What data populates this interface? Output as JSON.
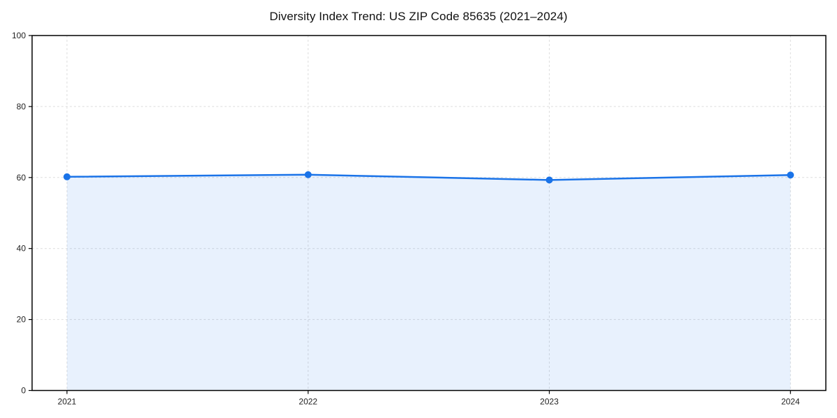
{
  "title": "Diversity Index Trend: US ZIP Code 85635 (2021–2024)",
  "chart_data": {
    "type": "line",
    "title": "Diversity Index Trend: US ZIP Code 85635 (2021–2024)",
    "categories": [
      "2021",
      "2022",
      "2023",
      "2024"
    ],
    "series": [
      {
        "name": "Diversity Index",
        "values": [
          60.2,
          60.8,
          59.3,
          60.7
        ]
      }
    ],
    "xlabel": "",
    "ylabel": "",
    "ylim": [
      0,
      100
    ],
    "yticks": [
      0,
      20,
      40,
      60,
      80,
      100
    ],
    "grid": true,
    "grid_style": "dashed",
    "legend_position": "none",
    "area_fill": true,
    "marker": "circle",
    "colors": {
      "line": "#1a73e8",
      "marker": "#1a73e8",
      "fill": "#1a73e8",
      "fill_opacity": 0.1,
      "grid": "#dedede",
      "axis": "#000000",
      "tick_label": "#222222",
      "background": "#ffffff"
    }
  }
}
